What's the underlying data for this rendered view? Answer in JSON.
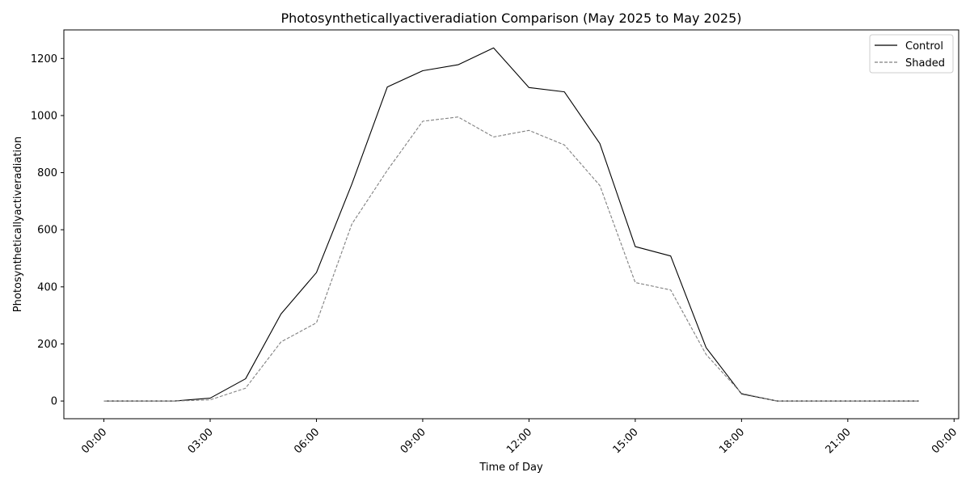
{
  "chart_data": {
    "type": "line",
    "title": "Photosyntheticallyactiveradiation Comparison (May 2025 to May 2025)",
    "xlabel": "Time of Day",
    "ylabel": "Photosyntheticallyactiveradiation",
    "x_unit": "hour of day",
    "x": [
      0,
      1,
      2,
      3,
      4,
      5,
      6,
      7,
      8,
      9,
      10,
      11,
      12,
      13,
      14,
      15,
      16,
      17,
      18,
      19,
      20,
      21,
      22,
      23
    ],
    "xlim": [
      -1.13,
      24.13
    ],
    "x_ticks": [
      0,
      3,
      6,
      9,
      12,
      15,
      18,
      21,
      24
    ],
    "x_tick_labels": [
      "00:00",
      "03:00",
      "06:00",
      "09:00",
      "12:00",
      "15:00",
      "18:00",
      "21:00",
      "00:00"
    ],
    "ylim": [
      -62,
      1300
    ],
    "y_ticks": [
      0,
      200,
      400,
      600,
      800,
      1000,
      1200
    ],
    "y_tick_labels": [
      "0",
      "200",
      "400",
      "600",
      "800",
      "1000",
      "1200"
    ],
    "grid": false,
    "legend_position": "top-right",
    "series": [
      {
        "name": "Control",
        "color": "#000000",
        "style": "solid",
        "values": [
          0,
          0,
          0,
          10,
          78,
          305,
          450,
          760,
          1100,
          1157,
          1178,
          1237,
          1098,
          1083,
          902,
          541,
          508,
          187,
          25,
          0,
          0,
          0,
          0,
          0
        ]
      },
      {
        "name": "Shaded",
        "color": "#808080",
        "style": "dashed",
        "values": [
          0,
          0,
          0,
          4,
          45,
          207,
          274,
          620,
          808,
          980,
          995,
          925,
          948,
          897,
          755,
          415,
          389,
          163,
          27,
          0,
          0,
          0,
          0,
          0
        ]
      }
    ]
  }
}
